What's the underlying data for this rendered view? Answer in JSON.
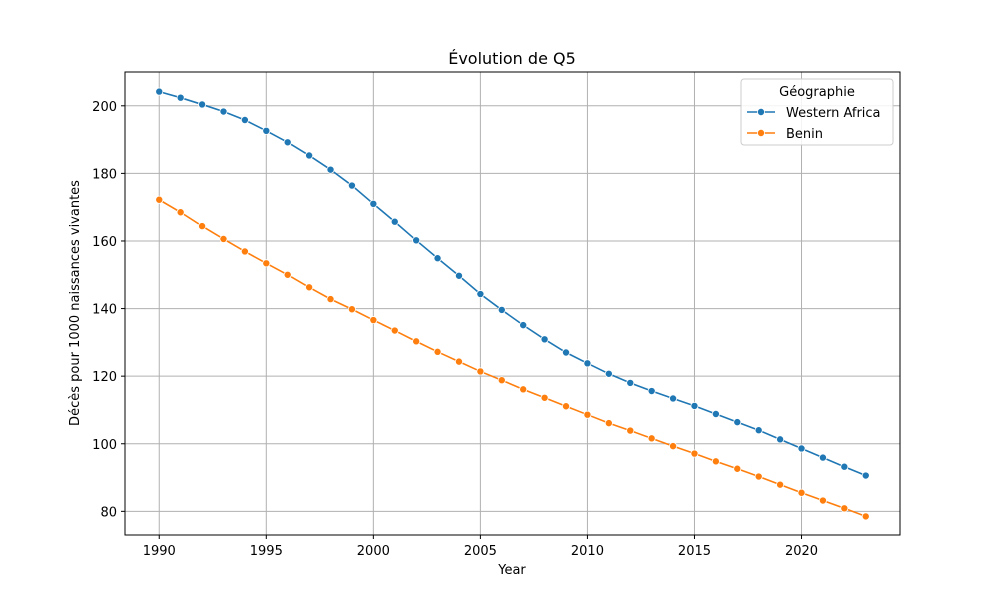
{
  "chart_data": {
    "type": "line",
    "title": "Évolution de Q5",
    "xlabel": "Year",
    "ylabel": "Décès pour 1000 naissances vivantes",
    "xlim": [
      1988.4,
      2024.6
    ],
    "ylim": [
      73,
      210
    ],
    "xticks": [
      1990,
      1995,
      2000,
      2005,
      2010,
      2015,
      2020
    ],
    "yticks": [
      80,
      100,
      120,
      140,
      160,
      180,
      200
    ],
    "grid": true,
    "legend": {
      "title": "Géographie",
      "placement": "top-right"
    },
    "x": [
      1990,
      1991,
      1992,
      1993,
      1994,
      1995,
      1996,
      1997,
      1998,
      1999,
      2000,
      2001,
      2002,
      2003,
      2004,
      2005,
      2006,
      2007,
      2008,
      2009,
      2010,
      2011,
      2012,
      2013,
      2014,
      2015,
      2016,
      2017,
      2018,
      2019,
      2020,
      2021,
      2022,
      2023
    ],
    "series": [
      {
        "name": "Western Africa",
        "color": "#1f77b4",
        "marker": "circle",
        "values": [
          204.2,
          202.4,
          200.4,
          198.3,
          195.8,
          192.6,
          189.2,
          185.3,
          181.1,
          176.4,
          171.0,
          165.7,
          160.2,
          154.9,
          149.7,
          144.3,
          139.6,
          135.1,
          130.9,
          127.0,
          123.8,
          120.7,
          118.0,
          115.6,
          113.4,
          111.2,
          108.8,
          106.4,
          104.0,
          101.3,
          98.6,
          95.9,
          93.2,
          90.6
        ]
      },
      {
        "name": "Benin",
        "color": "#ff7f0e",
        "marker": "circle",
        "values": [
          172.2,
          168.5,
          164.4,
          160.6,
          156.9,
          153.4,
          150.0,
          146.3,
          142.8,
          139.8,
          136.6,
          133.5,
          130.3,
          127.2,
          124.3,
          121.4,
          118.8,
          116.1,
          113.6,
          111.1,
          108.6,
          106.1,
          103.9,
          101.6,
          99.3,
          97.1,
          94.8,
          92.6,
          90.3,
          87.9,
          85.5,
          83.2,
          80.9,
          78.5
        ]
      }
    ]
  }
}
